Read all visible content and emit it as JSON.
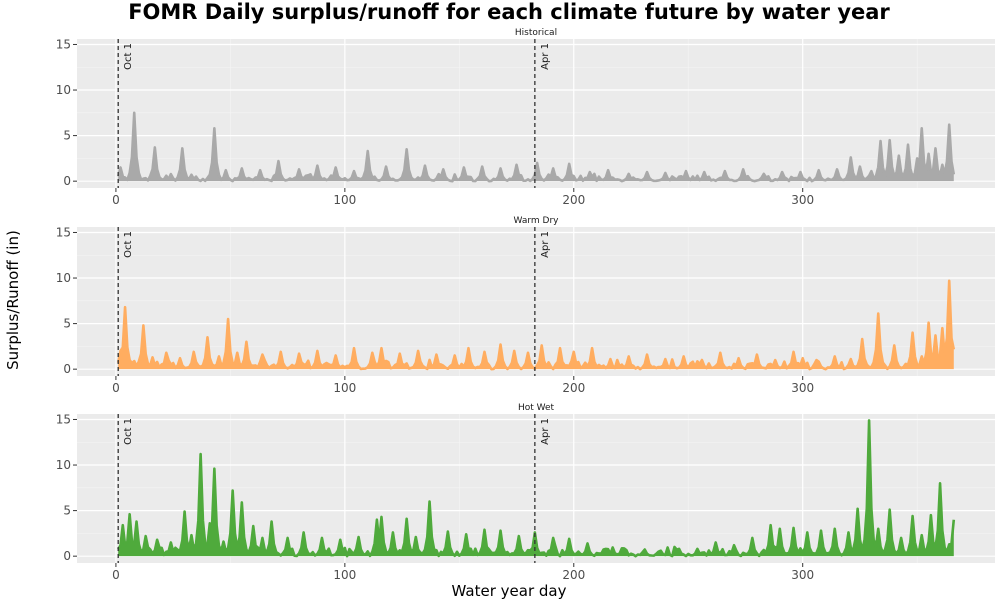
{
  "chart_data": {
    "type": "area",
    "title": "FOMR Daily surplus/runoff for each climate future by water year",
    "xlabel": "Water year day",
    "ylabel": "Surplus/Runoff (in)",
    "xlim": [
      -17,
      384
    ],
    "ylim": [
      -0.75,
      15.6
    ],
    "x_ticks": [
      0,
      100,
      200,
      300
    ],
    "y_ticks": [
      0,
      5,
      10,
      15
    ],
    "grid": true,
    "reference_lines": [
      {
        "x": 1,
        "label": "Oct 1"
      },
      {
        "x": 183,
        "label": "Apr 1"
      }
    ],
    "series": [
      {
        "name": "Historical",
        "color": "#A9A9A9",
        "peaks": [
          [
            2,
            1.5
          ],
          [
            4,
            0.4
          ],
          [
            8,
            7.5
          ],
          [
            10,
            0.5
          ],
          [
            17,
            3.7
          ],
          [
            22,
            0.6
          ],
          [
            29,
            3.6
          ],
          [
            33,
            0.7
          ],
          [
            43,
            5.8
          ],
          [
            48,
            1.2
          ],
          [
            55,
            1.4
          ],
          [
            63,
            1.2
          ],
          [
            71,
            2.2
          ],
          [
            80,
            1.3
          ],
          [
            88,
            1.7
          ],
          [
            96,
            1.5
          ],
          [
            104,
            1.1
          ],
          [
            110,
            3.3
          ],
          [
            118,
            1.6
          ],
          [
            127,
            3.5
          ],
          [
            135,
            1.7
          ],
          [
            143,
            1.3
          ],
          [
            152,
            1.5
          ],
          [
            160,
            1.6
          ],
          [
            168,
            1.4
          ],
          [
            175,
            1.8
          ],
          [
            184,
            2.0
          ],
          [
            191,
            1.4
          ],
          [
            198,
            1.9
          ],
          [
            207,
            1.0
          ],
          [
            215,
            1.2
          ],
          [
            224,
            0.8
          ],
          [
            232,
            1.0
          ],
          [
            240,
            0.9
          ],
          [
            249,
            1.1
          ],
          [
            257,
            1.0
          ],
          [
            266,
            1.1
          ],
          [
            274,
            1.3
          ],
          [
            283,
            0.8
          ],
          [
            291,
            1.0
          ],
          [
            299,
            1.0
          ],
          [
            307,
            1.2
          ],
          [
            315,
            1.3
          ],
          [
            321,
            2.6
          ],
          [
            325,
            1.6
          ],
          [
            330,
            1.1
          ],
          [
            334,
            4.4
          ],
          [
            338,
            4.5
          ],
          [
            342,
            2.8
          ],
          [
            346,
            4.0
          ],
          [
            350,
            2.5
          ],
          [
            352,
            5.8
          ],
          [
            355,
            3.0
          ],
          [
            358,
            3.6
          ],
          [
            361,
            1.8
          ],
          [
            364,
            6.2
          ],
          [
            366,
            0.3
          ]
        ],
        "noise": 0.8
      },
      {
        "name": "Warm Dry",
        "color": "#FFAD60",
        "peaks": [
          [
            2,
            2.0
          ],
          [
            4,
            6.8
          ],
          [
            6,
            1.0
          ],
          [
            12,
            4.8
          ],
          [
            16,
            1.3
          ],
          [
            22,
            1.8
          ],
          [
            28,
            1.2
          ],
          [
            34,
            1.9
          ],
          [
            40,
            3.5
          ],
          [
            45,
            1.4
          ],
          [
            49,
            5.5
          ],
          [
            53,
            1.8
          ],
          [
            57,
            3.0
          ],
          [
            64,
            1.6
          ],
          [
            72,
            1.9
          ],
          [
            80,
            1.7
          ],
          [
            88,
            2.0
          ],
          [
            96,
            1.5
          ],
          [
            104,
            2.3
          ],
          [
            112,
            1.8
          ],
          [
            116,
            2.3
          ],
          [
            124,
            1.7
          ],
          [
            132,
            2.0
          ],
          [
            140,
            1.6
          ],
          [
            148,
            1.5
          ],
          [
            154,
            2.3
          ],
          [
            161,
            1.9
          ],
          [
            168,
            2.7
          ],
          [
            174,
            2.0
          ],
          [
            180,
            1.8
          ],
          [
            186,
            2.6
          ],
          [
            194,
            2.3
          ],
          [
            200,
            1.9
          ],
          [
            208,
            2.3
          ],
          [
            216,
            1.1
          ],
          [
            224,
            1.4
          ],
          [
            232,
            1.6
          ],
          [
            240,
            1.1
          ],
          [
            248,
            1.4
          ],
          [
            256,
            1.0
          ],
          [
            264,
            1.8
          ],
          [
            272,
            1.2
          ],
          [
            280,
            1.6
          ],
          [
            288,
            1.0
          ],
          [
            296,
            1.9
          ],
          [
            300,
            1.2
          ],
          [
            306,
            1.0
          ],
          [
            314,
            1.4
          ],
          [
            321,
            1.1
          ],
          [
            326,
            3.3
          ],
          [
            333,
            6.1
          ],
          [
            340,
            2.6
          ],
          [
            348,
            4.0
          ],
          [
            352,
            1.4
          ],
          [
            355,
            5.1
          ],
          [
            358,
            3.7
          ],
          [
            361,
            4.5
          ],
          [
            364,
            9.7
          ],
          [
            367,
            6.2
          ]
        ],
        "noise": 1.1
      },
      {
        "name": "Hot Wet",
        "color": "#4FAA3C",
        "peaks": [
          [
            3,
            3.4
          ],
          [
            6,
            4.6
          ],
          [
            9,
            3.8
          ],
          [
            13,
            2.2
          ],
          [
            18,
            1.8
          ],
          [
            24,
            1.5
          ],
          [
            30,
            4.9
          ],
          [
            33,
            2.3
          ],
          [
            37,
            11.2
          ],
          [
            41,
            3.6
          ],
          [
            43,
            9.6
          ],
          [
            47,
            1.6
          ],
          [
            51,
            7.2
          ],
          [
            55,
            5.9
          ],
          [
            60,
            3.3
          ],
          [
            64,
            2.0
          ],
          [
            68,
            3.8
          ],
          [
            75,
            2.0
          ],
          [
            82,
            2.6
          ],
          [
            90,
            2.0
          ],
          [
            98,
            1.8
          ],
          [
            106,
            2.1
          ],
          [
            114,
            4.0
          ],
          [
            116,
            4.3
          ],
          [
            121,
            2.6
          ],
          [
            127,
            4.1
          ],
          [
            131,
            2.1
          ],
          [
            137,
            6.0
          ],
          [
            145,
            2.7
          ],
          [
            153,
            2.4
          ],
          [
            161,
            2.9
          ],
          [
            168,
            2.8
          ],
          [
            176,
            2.2
          ],
          [
            183,
            2.6
          ],
          [
            191,
            2.0
          ],
          [
            198,
            1.9
          ],
          [
            206,
            1.4
          ],
          [
            214,
            0.8
          ],
          [
            222,
            0.6
          ],
          [
            230,
            0.4
          ],
          [
            238,
            0.6
          ],
          [
            246,
            0.8
          ],
          [
            254,
            0.8
          ],
          [
            262,
            1.5
          ],
          [
            270,
            1.2
          ],
          [
            278,
            2.0
          ],
          [
            286,
            3.4
          ],
          [
            290,
            3.0
          ],
          [
            296,
            3.1
          ],
          [
            302,
            2.6
          ],
          [
            308,
            2.8
          ],
          [
            314,
            3.0
          ],
          [
            320,
            2.6
          ],
          [
            324,
            5.2
          ],
          [
            329,
            14.9
          ],
          [
            333,
            3.0
          ],
          [
            338,
            5.1
          ],
          [
            343,
            2.0
          ],
          [
            348,
            4.4
          ],
          [
            352,
            2.3
          ],
          [
            356,
            4.5
          ],
          [
            360,
            8.0
          ],
          [
            364,
            1.3
          ],
          [
            366,
            4.0
          ]
        ],
        "noise": 1.2
      }
    ]
  }
}
